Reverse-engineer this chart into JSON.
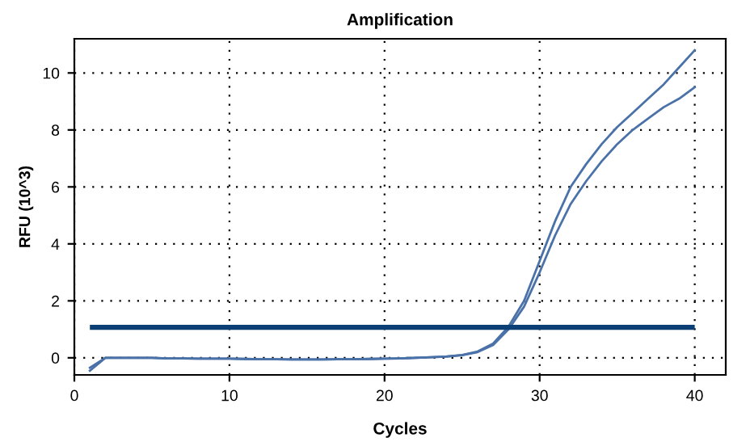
{
  "chart_data": {
    "type": "line",
    "title": "Amplification",
    "xlabel": "Cycles",
    "ylabel": "RFU (10^3)",
    "x": [
      1,
      2,
      3,
      4,
      5,
      6,
      7,
      8,
      9,
      10,
      11,
      12,
      13,
      14,
      15,
      16,
      17,
      18,
      19,
      20,
      21,
      22,
      23,
      24,
      25,
      26,
      27,
      28,
      29,
      30,
      31,
      32,
      33,
      34,
      35,
      36,
      37,
      38,
      39,
      40
    ],
    "series": [
      {
        "color": "#4a72a8",
        "values": [
          -0.35,
          0,
          0,
          0,
          0,
          -0.02,
          -0.02,
          -0.03,
          -0.03,
          -0.03,
          -0.04,
          -0.05,
          -0.05,
          -0.06,
          -0.06,
          -0.06,
          -0.05,
          -0.05,
          -0.04,
          -0.03,
          -0.02,
          0,
          0.02,
          0.05,
          0.1,
          0.22,
          0.5,
          1.1,
          2.0,
          3.4,
          4.8,
          6.0,
          6.8,
          7.5,
          8.1,
          8.6,
          9.1,
          9.6,
          10.2,
          10.8
        ]
      },
      {
        "color": "#4a72a8",
        "values": [
          -0.45,
          0,
          0,
          0,
          0,
          -0.02,
          -0.02,
          -0.03,
          -0.03,
          -0.03,
          -0.04,
          -0.05,
          -0.05,
          -0.06,
          -0.06,
          -0.06,
          -0.05,
          -0.05,
          -0.04,
          -0.03,
          -0.02,
          0,
          0.02,
          0.04,
          0.09,
          0.2,
          0.45,
          1.0,
          1.8,
          3.0,
          4.3,
          5.4,
          6.2,
          6.9,
          7.5,
          8.0,
          8.4,
          8.8,
          9.1,
          9.5
        ]
      }
    ],
    "ref_lines": [
      {
        "axis": "y",
        "value": 1.07,
        "color": "#0b3f75"
      }
    ],
    "xlim": [
      0,
      42
    ],
    "xticks": [
      0,
      10,
      20,
      30,
      40
    ],
    "ylim": [
      -0.6,
      11.2
    ],
    "yticks": [
      0,
      2,
      4,
      6,
      8,
      10
    ],
    "grid": true,
    "line_style": "solid",
    "marker": "none",
    "legend": false
  }
}
